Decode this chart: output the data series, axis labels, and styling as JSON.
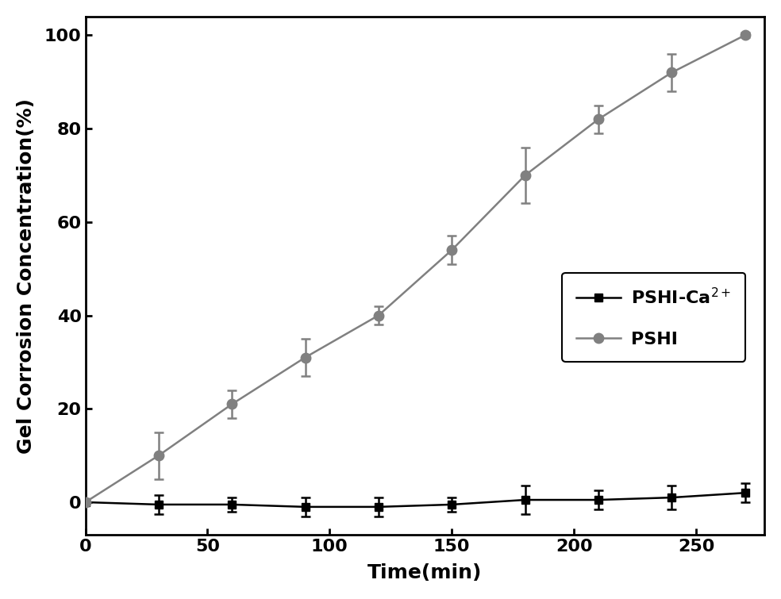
{
  "pshi_x": [
    0,
    30,
    60,
    90,
    120,
    150,
    180,
    210,
    240,
    270
  ],
  "pshi_y": [
    0,
    10,
    21,
    31,
    40,
    54,
    70,
    82,
    92,
    100
  ],
  "pshi_yerr": [
    0,
    5,
    3,
    4,
    2,
    3,
    6,
    3,
    4,
    0.5
  ],
  "pshi_ca_x": [
    0,
    30,
    60,
    90,
    120,
    150,
    180,
    210,
    240,
    270
  ],
  "pshi_ca_y": [
    0,
    -0.5,
    -0.5,
    -1,
    -1,
    -0.5,
    0.5,
    0.5,
    1,
    2
  ],
  "pshi_ca_yerr": [
    0,
    2,
    1.5,
    2,
    2,
    1.5,
    3,
    2,
    2.5,
    2
  ],
  "pshi_color": "#808080",
  "pshi_ca_color": "#000000",
  "xlabel": "Time(min)",
  "ylabel": "Gel Corrosion Concentration(%)",
  "xlim": [
    0,
    278
  ],
  "ylim": [
    -7,
    104
  ],
  "xticks": [
    0,
    50,
    100,
    150,
    200,
    250
  ],
  "yticks": [
    0,
    20,
    40,
    60,
    80,
    100
  ],
  "label_fontsize": 18,
  "tick_fontsize": 16
}
